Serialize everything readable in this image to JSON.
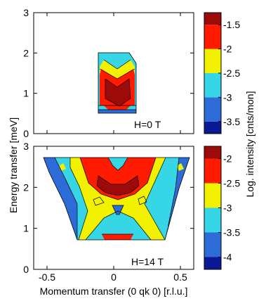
{
  "chart_data": [
    {
      "type": "heatmap",
      "panel": "top",
      "annotation": "H=0 T",
      "xlim": [
        -0.6,
        0.6
      ],
      "ylim": [
        0,
        3
      ],
      "yticks": [
        "0",
        "1",
        "2",
        "3"
      ],
      "colorbar": {
        "label": "Log. intensity [cnts/mon]",
        "ticks": [
          "-1.5",
          "-2",
          "-2.5",
          "-3",
          "-3.5"
        ],
        "levels": [
          -3.75,
          -3.5,
          -3.0,
          -2.5,
          -2.0,
          -1.5,
          -1.25
        ],
        "colors": [
          "#0a1a96",
          "#2d6bd8",
          "#36d6e6",
          "#f2f200",
          "#ff1a00",
          "#9c0a0a"
        ]
      },
      "data_region": {
        "x": [
          -0.15,
          0.15
        ],
        "y": [
          0.5,
          2.0
        ]
      }
    },
    {
      "type": "heatmap",
      "panel": "bottom",
      "annotation": "H=14 T",
      "xlim": [
        -0.6,
        0.6
      ],
      "ylim": [
        0,
        3
      ],
      "yticks": [
        "0",
        "1",
        "2",
        "3"
      ],
      "xticks": [
        "-0.5",
        "0",
        "0.5"
      ],
      "xlabel": "Momentum transfer (0 qk 0) [r.l.u.]",
      "colorbar": {
        "ticks": [
          "-2",
          "-2.5",
          "-3",
          "-3.5",
          "-4"
        ],
        "levels": [
          -4.25,
          -4.0,
          -3.5,
          -3.0,
          -2.5,
          -2.0,
          -1.75
        ],
        "colors": [
          "#0a1a96",
          "#2d6bd8",
          "#36d6e6",
          "#f2f200",
          "#ff1a00",
          "#9c0a0a"
        ]
      },
      "data_region": {
        "x": [
          -0.55,
          0.55
        ],
        "y": [
          0.75,
          2.75
        ]
      }
    }
  ],
  "shared_ylabel": "Energy transfer [meV]"
}
